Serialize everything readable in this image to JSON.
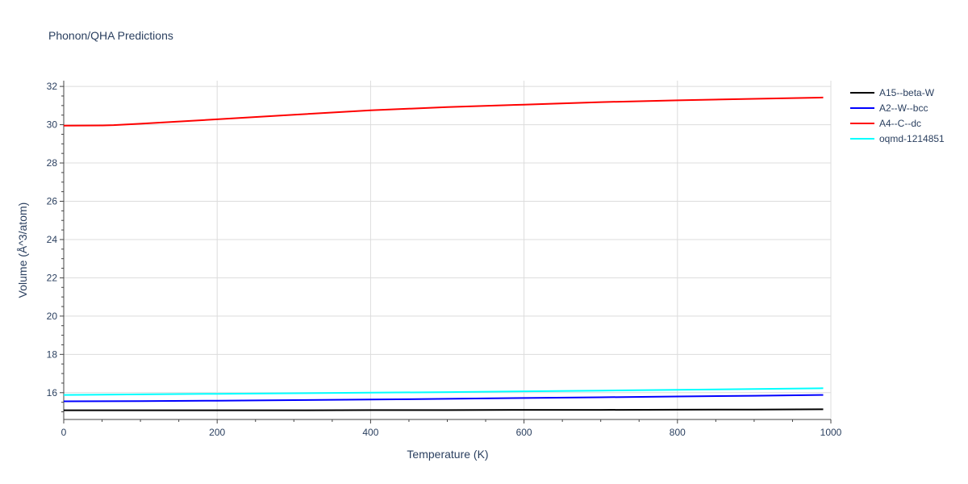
{
  "title": "Phonon/QHA Predictions",
  "chart_data": {
    "type": "line",
    "title": "Phonon/QHA Predictions",
    "xlabel": "Temperature (K)",
    "ylabel": "Volume (Å^3/atom)",
    "xlim": [
      0,
      1000
    ],
    "ylim": [
      14.6,
      32.3
    ],
    "x_ticks": [
      0,
      200,
      400,
      600,
      800,
      1000
    ],
    "y_ticks": [
      16,
      18,
      20,
      22,
      24,
      26,
      28,
      30,
      32
    ],
    "grid": true,
    "legend_position": "top-right outside plot",
    "series": [
      {
        "name": "A15--beta-W",
        "color": "#000000",
        "x": [
          0,
          100,
          200,
          300,
          400,
          500,
          600,
          700,
          800,
          900,
          990
        ],
        "values": [
          15.08,
          15.08,
          15.08,
          15.08,
          15.09,
          15.09,
          15.1,
          15.1,
          15.11,
          15.12,
          15.13
        ]
      },
      {
        "name": "A2--W--bcc",
        "color": "#0000ff",
        "x": [
          0,
          100,
          200,
          300,
          400,
          500,
          600,
          700,
          800,
          900,
          990
        ],
        "values": [
          15.55,
          15.56,
          15.58,
          15.61,
          15.64,
          15.68,
          15.72,
          15.76,
          15.8,
          15.84,
          15.88
        ]
      },
      {
        "name": "A4--C--dc",
        "color": "#ff0000",
        "x": [
          0,
          50,
          65,
          100,
          200,
          300,
          400,
          500,
          600,
          700,
          800,
          900,
          990
        ],
        "values": [
          29.95,
          29.96,
          29.98,
          30.05,
          30.28,
          30.52,
          30.75,
          30.92,
          31.05,
          31.18,
          31.27,
          31.35,
          31.42
        ]
      },
      {
        "name": "oqmd-1214851",
        "color": "#00ffff",
        "x": [
          0,
          100,
          200,
          300,
          400,
          500,
          600,
          700,
          800,
          900,
          990
        ],
        "values": [
          15.88,
          15.91,
          15.94,
          15.97,
          16.0,
          16.03,
          16.07,
          16.11,
          16.15,
          16.19,
          16.23
        ]
      }
    ]
  }
}
